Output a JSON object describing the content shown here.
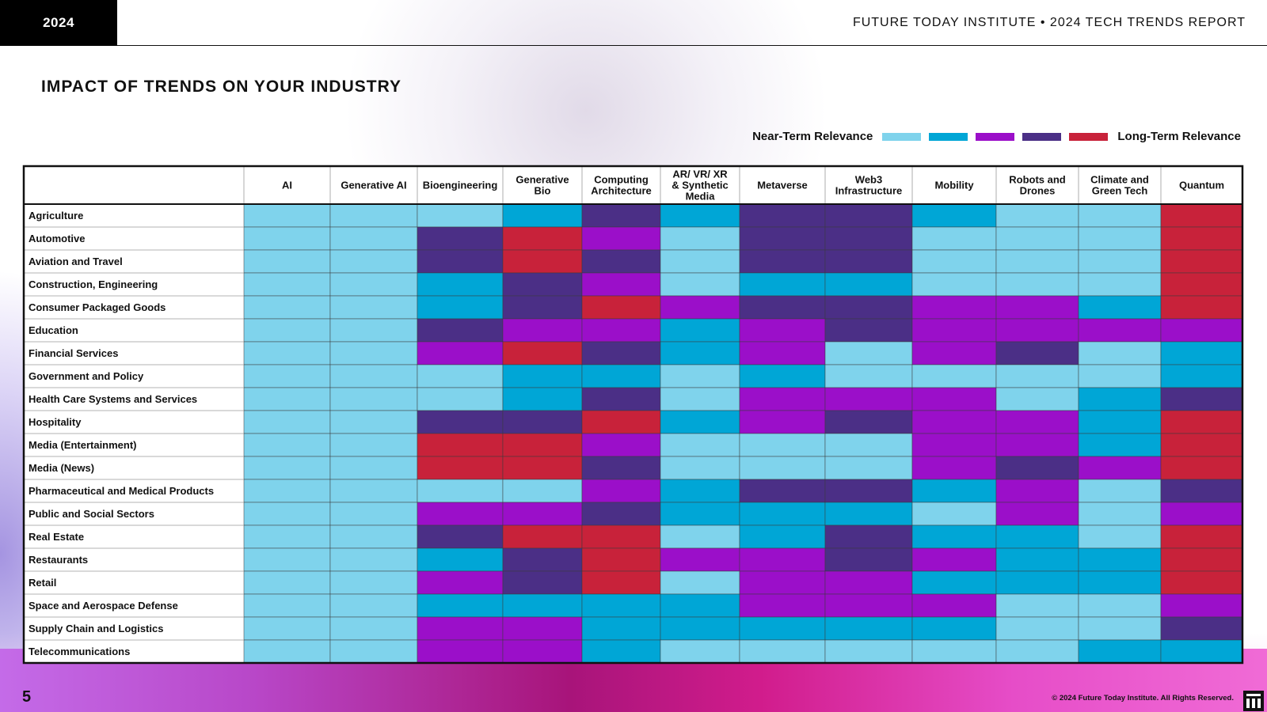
{
  "header": {
    "year": "2024",
    "report_title": "FUTURE TODAY INSTITUTE • 2024 TECH TRENDS REPORT"
  },
  "page_title": "IMPACT OF TRENDS ON YOUR INDUSTRY",
  "legend": {
    "near_label": "Near-Term Relevance",
    "long_label": "Long-Term Relevance",
    "levels": [
      "#7fd3ec",
      "#00a6d6",
      "#9b0fc9",
      "#4b2f86",
      "#c8223a"
    ]
  },
  "chart_data": {
    "type": "heatmap",
    "value_scale": "1 = Near-Term Relevance ... 5 = Long-Term Relevance",
    "columns": [
      [
        "AI"
      ],
      [
        "Generative AI"
      ],
      [
        "Bioengineering"
      ],
      [
        "Generative",
        "Bio"
      ],
      [
        "Computing",
        "Architecture"
      ],
      [
        "AR/ VR/ XR",
        "& Synthetic",
        "Media"
      ],
      [
        "Metaverse"
      ],
      [
        "Web3",
        "Infrastructure"
      ],
      [
        "Mobility"
      ],
      [
        "Robots and",
        "Drones"
      ],
      [
        "Climate and",
        "Green Tech"
      ],
      [
        "Quantum"
      ]
    ],
    "rows": [
      "Agriculture",
      "Automotive",
      "Aviation and Travel",
      "Construction, Engineering",
      "Consumer Packaged Goods",
      "Education",
      "Financial Services",
      "Government and Policy",
      "Health Care Systems and Services",
      "Hospitality",
      "Media (Entertainment)",
      "Media (News)",
      "Pharmaceutical and Medical Products",
      "Public and Social Sectors",
      "Real Estate",
      "Restaurants",
      "Retail",
      "Space and Aerospace Defense",
      "Supply Chain and Logistics",
      "Telecommunications"
    ],
    "values": [
      [
        1,
        1,
        1,
        2,
        4,
        2,
        4,
        4,
        2,
        1,
        1,
        5
      ],
      [
        1,
        1,
        4,
        5,
        3,
        1,
        4,
        4,
        1,
        1,
        1,
        5
      ],
      [
        1,
        1,
        4,
        5,
        4,
        1,
        4,
        4,
        1,
        1,
        1,
        5
      ],
      [
        1,
        1,
        2,
        4,
        3,
        1,
        2,
        2,
        1,
        1,
        1,
        5
      ],
      [
        1,
        1,
        2,
        4,
        5,
        3,
        4,
        4,
        3,
        3,
        2,
        5
      ],
      [
        1,
        1,
        4,
        3,
        3,
        2,
        3,
        4,
        3,
        3,
        3,
        3
      ],
      [
        1,
        1,
        3,
        5,
        4,
        2,
        3,
        1,
        3,
        4,
        1,
        2
      ],
      [
        1,
        1,
        1,
        2,
        2,
        1,
        2,
        1,
        1,
        1,
        1,
        2
      ],
      [
        1,
        1,
        1,
        2,
        4,
        1,
        3,
        3,
        3,
        1,
        2,
        4
      ],
      [
        1,
        1,
        4,
        4,
        5,
        2,
        3,
        4,
        3,
        3,
        2,
        5
      ],
      [
        1,
        1,
        5,
        5,
        3,
        1,
        1,
        1,
        3,
        3,
        2,
        5
      ],
      [
        1,
        1,
        5,
        5,
        4,
        1,
        1,
        1,
        3,
        4,
        3,
        5
      ],
      [
        1,
        1,
        1,
        1,
        3,
        2,
        4,
        4,
        2,
        3,
        1,
        4
      ],
      [
        1,
        1,
        3,
        3,
        4,
        2,
        2,
        2,
        1,
        3,
        1,
        3
      ],
      [
        1,
        1,
        4,
        5,
        5,
        1,
        2,
        4,
        2,
        2,
        1,
        5
      ],
      [
        1,
        1,
        2,
        4,
        5,
        3,
        3,
        4,
        3,
        2,
        2,
        5
      ],
      [
        1,
        1,
        3,
        4,
        5,
        1,
        3,
        3,
        2,
        2,
        2,
        5
      ],
      [
        1,
        1,
        2,
        2,
        2,
        2,
        3,
        3,
        3,
        1,
        1,
        3
      ],
      [
        1,
        1,
        3,
        3,
        2,
        2,
        2,
        2,
        2,
        1,
        1,
        4
      ],
      [
        1,
        1,
        3,
        3,
        2,
        1,
        1,
        1,
        1,
        1,
        2,
        2
      ]
    ]
  },
  "footer": {
    "page_number": "5",
    "copyright": "© 2024 Future Today Institute. All Rights Reserved."
  }
}
